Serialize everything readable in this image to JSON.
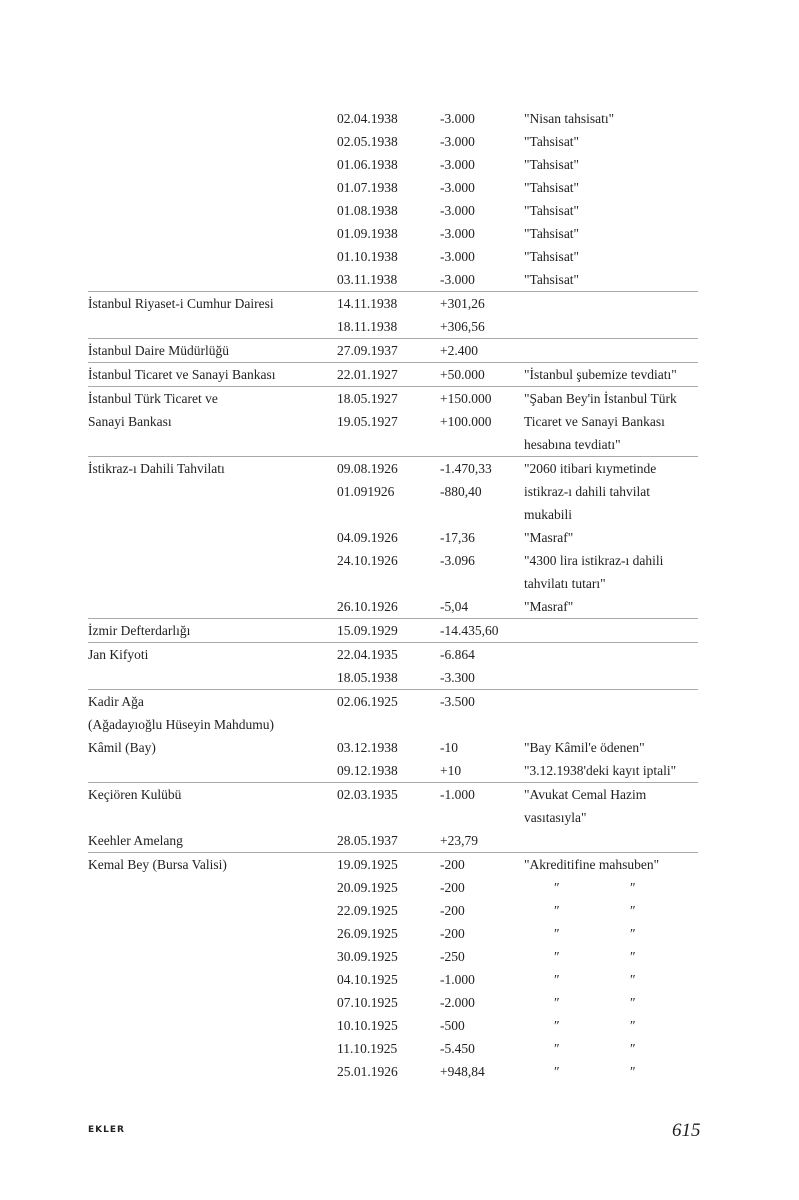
{
  "rows": [
    {
      "sep": false,
      "name": "",
      "date": "02.04.1938",
      "amount": "-3.000",
      "note": "\"Nisan tahsisatı\""
    },
    {
      "sep": false,
      "name": "",
      "date": "02.05.1938",
      "amount": "-3.000",
      "note": "\"Tahsisat\""
    },
    {
      "sep": false,
      "name": "",
      "date": "01.06.1938",
      "amount": "-3.000",
      "note": "\"Tahsisat\""
    },
    {
      "sep": false,
      "name": "",
      "date": "01.07.1938",
      "amount": "-3.000",
      "note": "\"Tahsisat\""
    },
    {
      "sep": false,
      "name": "",
      "date": "01.08.1938",
      "amount": "-3.000",
      "note": "\"Tahsisat\""
    },
    {
      "sep": false,
      "name": "",
      "date": "01.09.1938",
      "amount": "-3.000",
      "note": "\"Tahsisat\""
    },
    {
      "sep": false,
      "name": "",
      "date": "01.10.1938",
      "amount": "-3.000",
      "note": "\"Tahsisat\""
    },
    {
      "sep": false,
      "name": "",
      "date": "03.11.1938",
      "amount": "-3.000",
      "note": "\"Tahsisat\""
    },
    {
      "sep": true,
      "name": "İstanbul Riyaset-i Cumhur Dairesi",
      "date": "14.11.1938",
      "amount": "+301,26",
      "note": ""
    },
    {
      "sep": false,
      "name": "",
      "date": "18.11.1938",
      "amount": "+306,56",
      "note": ""
    },
    {
      "sep": true,
      "name": "İstanbul Daire Müdürlüğü",
      "date": "27.09.1937",
      "amount": "+2.400",
      "note": ""
    },
    {
      "sep": true,
      "name": "İstanbul Ticaret ve Sanayi Bankası",
      "date": "22.01.1927",
      "amount": "+50.000",
      "note": "\"İstanbul şubemize tevdiatı\""
    },
    {
      "sep": true,
      "name": "İstanbul Türk Ticaret ve",
      "date": "18.05.1927",
      "amount": "+150.000",
      "note": "\"Şaban Bey'in İstanbul Türk"
    },
    {
      "sep": false,
      "name": "Sanayi Bankası",
      "date": "19.05.1927",
      "amount": "+100.000",
      "note": "Ticaret ve Sanayi Bankası"
    },
    {
      "sep": false,
      "name": "",
      "date": "",
      "amount": "",
      "note": "hesabına tevdiatı\""
    },
    {
      "sep": true,
      "name": "İstikraz-ı Dahili Tahvilatı",
      "date": "09.08.1926",
      "amount": "-1.470,33",
      "note": "\"2060 itibari kıymetinde"
    },
    {
      "sep": false,
      "name": "",
      "date": "01.091926",
      "amount": "-880,40",
      "note": "istikraz-ı dahili tahvilat"
    },
    {
      "sep": false,
      "name": "",
      "date": "",
      "amount": "",
      "note": "mukabili"
    },
    {
      "sep": false,
      "name": "",
      "date": "04.09.1926",
      "amount": "-17,36",
      "note": "\"Masraf\""
    },
    {
      "sep": false,
      "name": "",
      "date": "24.10.1926",
      "amount": "-3.096",
      "note": "\"4300 lira istikraz-ı dahili"
    },
    {
      "sep": false,
      "name": "",
      "date": "",
      "amount": "",
      "note": " tahvilatı tutarı\""
    },
    {
      "sep": false,
      "name": "",
      "date": "26.10.1926",
      "amount": "-5,04",
      "note": "\"Masraf\""
    },
    {
      "sep": true,
      "name": "İzmir Defterdarlığı",
      "date": "15.09.1929",
      "amount": "-14.435,60",
      "note": ""
    },
    {
      "sep": true,
      "name": "Jan Kifyoti",
      "date": "22.04.1935",
      "amount": "-6.864",
      "note": ""
    },
    {
      "sep": false,
      "name": "",
      "date": "18.05.1938",
      "amount": "-3.300",
      "note": ""
    },
    {
      "sep": true,
      "name": "Kadir Ağa",
      "date": "02.06.1925",
      "amount": "-3.500",
      "note": ""
    },
    {
      "sep": false,
      "name": "(Ağadayıoğlu Hüseyin Mahdumu)",
      "date": "",
      "amount": "",
      "note": ""
    },
    {
      "sep": false,
      "name": "Kâmil (Bay)",
      "date": "03.12.1938",
      "amount": "-10",
      "note": "\"Bay Kâmil'e ödenen\""
    },
    {
      "sep": false,
      "name": "",
      "date": "09.12.1938",
      "amount": "+10",
      "note": "\"3.12.1938'deki kayıt iptali\""
    },
    {
      "sep": true,
      "name": "Keçiören Kulübü",
      "date": "02.03.1935",
      "amount": "-1.000",
      "note": "\"Avukat Cemal Hazim"
    },
    {
      "sep": false,
      "name": "",
      "date": "",
      "amount": "",
      "note": "vasıtasıyla\""
    },
    {
      "sep": false,
      "name": "Keehler Amelang",
      "date": "28.05.1937",
      "amount": "+23,79",
      "note": ""
    },
    {
      "sep": true,
      "name": "Kemal Bey (Bursa Valisi)",
      "date": "19.09.1925",
      "amount": "-200",
      "note": "\"Akreditifine mahsuben\""
    },
    {
      "sep": false,
      "name": "",
      "date": "20.09.1925",
      "amount": "-200",
      "ditto": [
        "″",
        "″"
      ]
    },
    {
      "sep": false,
      "name": "",
      "date": "22.09.1925",
      "amount": "-200",
      "ditto": [
        "″",
        "″"
      ]
    },
    {
      "sep": false,
      "name": "",
      "date": "26.09.1925",
      "amount": "-200",
      "ditto": [
        "″",
        "″"
      ]
    },
    {
      "sep": false,
      "name": "",
      "date": "30.09.1925",
      "amount": "-250",
      "ditto": [
        "″",
        "″"
      ]
    },
    {
      "sep": false,
      "name": "",
      "date": "04.10.1925",
      "amount": "-1.000",
      "ditto": [
        "″",
        "″"
      ]
    },
    {
      "sep": false,
      "name": "",
      "date": "07.10.1925",
      "amount": "-2.000",
      "ditto": [
        "″",
        "″"
      ]
    },
    {
      "sep": false,
      "name": "",
      "date": "10.10.1925",
      "amount": "-500",
      "ditto": [
        "″",
        "″"
      ]
    },
    {
      "sep": false,
      "name": "",
      "date": "11.10.1925",
      "amount": "-5.450",
      "ditto": [
        "″",
        "″"
      ]
    },
    {
      "sep": false,
      "name": "",
      "date": "25.01.1926",
      "amount": "+948,84",
      "ditto": [
        "″",
        "″"
      ]
    }
  ],
  "footer": {
    "section": "EKLER",
    "page": "615"
  }
}
